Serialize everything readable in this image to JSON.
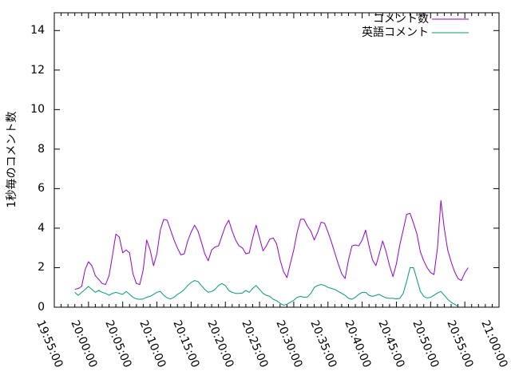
{
  "chart_data": {
    "type": "line",
    "title": "",
    "xlabel": "",
    "ylabel": "1秒毎のコメント数",
    "ylim": [
      0,
      14.9
    ],
    "ytick_values": [
      0,
      2,
      4,
      6,
      8,
      10,
      12,
      14
    ],
    "xtick_labels": [
      "19:55:00",
      "20:00:00",
      "20:05:00",
      "20:10:00",
      "20:15:00",
      "20:20:00",
      "20:25:00",
      "20:30:00",
      "20:35:00",
      "20:40:00",
      "20:45:00",
      "20:50:00",
      "20:55:00",
      "21:00:00"
    ],
    "x_axis_start": "19:55:00",
    "x_axis_end": "21:00:00",
    "minor_xtick_interval_seconds": 60,
    "grid": false,
    "legend_position": "top-right-inside",
    "axis_color": "#000000",
    "series_x_start": "19:58:00",
    "series_x_step_seconds": 30,
    "series": [
      {
        "name": "コメント数",
        "color": "#9400d3",
        "values": [
          0.9,
          0.95,
          1.05,
          1.9,
          2.3,
          2.1,
          1.6,
          1.4,
          1.2,
          1.15,
          1.6,
          2.6,
          3.7,
          3.55,
          2.75,
          2.9,
          2.75,
          1.7,
          1.2,
          1.15,
          1.9,
          3.4,
          2.9,
          2.1,
          2.7,
          3.9,
          4.45,
          4.4,
          3.9,
          3.4,
          3.0,
          2.65,
          2.7,
          3.35,
          3.8,
          4.15,
          3.85,
          3.3,
          2.7,
          2.35,
          2.9,
          3.05,
          3.1,
          3.6,
          4.1,
          4.4,
          3.85,
          3.4,
          3.1,
          3.0,
          2.7,
          2.75,
          3.5,
          4.15,
          3.5,
          2.85,
          3.1,
          3.45,
          3.5,
          3.2,
          2.4,
          1.8,
          1.5,
          2.2,
          2.9,
          3.8,
          4.45,
          4.45,
          4.1,
          3.85,
          3.4,
          3.8,
          4.3,
          4.25,
          3.8,
          3.3,
          2.75,
          2.2,
          1.7,
          1.45,
          2.4,
          3.1,
          3.15,
          3.1,
          3.4,
          3.9,
          3.1,
          2.4,
          2.1,
          2.7,
          3.35,
          2.8,
          2.1,
          1.55,
          2.2,
          3.15,
          3.9,
          4.7,
          4.75,
          4.25,
          3.7,
          2.8,
          2.35,
          2.0,
          1.75,
          1.65,
          3.0,
          5.4,
          4.0,
          2.9,
          2.3,
          1.8,
          1.45,
          1.35,
          1.75,
          2.0
        ]
      },
      {
        "name": "英語コメント",
        "color": "#009e73",
        "values": [
          0.75,
          0.6,
          0.75,
          0.9,
          1.05,
          0.9,
          0.75,
          0.85,
          0.75,
          0.7,
          0.6,
          0.7,
          0.75,
          0.7,
          0.65,
          0.8,
          0.65,
          0.5,
          0.42,
          0.4,
          0.42,
          0.5,
          0.55,
          0.65,
          0.75,
          0.8,
          0.6,
          0.47,
          0.42,
          0.5,
          0.65,
          0.75,
          0.9,
          1.1,
          1.25,
          1.35,
          1.3,
          1.1,
          0.9,
          0.75,
          0.8,
          0.9,
          1.1,
          1.2,
          1.1,
          0.85,
          0.75,
          0.7,
          0.7,
          0.72,
          0.85,
          0.75,
          0.95,
          1.1,
          0.9,
          0.7,
          0.6,
          0.55,
          0.4,
          0.33,
          0.2,
          0.1,
          0.15,
          0.25,
          0.35,
          0.5,
          0.55,
          0.5,
          0.52,
          0.7,
          1.0,
          1.1,
          1.15,
          1.1,
          1.0,
          0.95,
          0.9,
          0.8,
          0.7,
          0.6,
          0.45,
          0.4,
          0.5,
          0.65,
          0.75,
          0.75,
          0.6,
          0.55,
          0.6,
          0.65,
          0.55,
          0.47,
          0.45,
          0.45,
          0.42,
          0.45,
          0.7,
          1.3,
          2.0,
          2.0,
          1.4,
          0.8,
          0.55,
          0.47,
          0.5,
          0.6,
          0.72,
          0.8,
          0.6,
          0.4,
          0.25,
          0.15,
          0.05,
          null,
          null,
          null
        ]
      }
    ]
  }
}
